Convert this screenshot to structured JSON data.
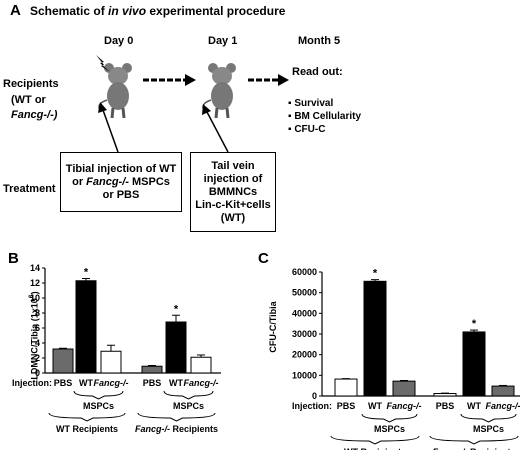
{
  "panelA": {
    "letter": "A",
    "title_prefix": "Schematic of ",
    "title_italic": "in vivo",
    "title_suffix": " experimental procedure",
    "day0": "Day 0",
    "day1": "Day 1",
    "month5": "Month 5",
    "recipients_line1": "Recipients",
    "recipients_line2": "(WT or",
    "recipients_line3": "Fancg-/-)",
    "readout_title": "Read out:",
    "readout_items": [
      "Survival",
      "BM Cellularity",
      "CFU-C"
    ],
    "treatment_label": "Treatment",
    "box1_line1": "Tibial injection of WT",
    "box1_line2_italic": "Fancg-/-",
    "box1_line2_prefix": "or ",
    "box1_line2_suffix": " MSPCs",
    "box1_line3": "or PBS",
    "box2_lines": [
      "Tail vein",
      "injection of",
      "BMMNCs",
      "Lin-c-Kit+cells",
      "(WT)"
    ]
  },
  "panelB": {
    "letter": "B",
    "ylabel": "LDMNC/Tibia (1x10",
    "ylabel_sup": "6",
    "ylabel_end": ")",
    "injection_label": "Injection:",
    "mspcs": "MSPCs",
    "wt_recipients": "WT Recipients",
    "fancg_recipients_italic": "Fancg-/-",
    "fancg_recipients_suffix": " Recipients",
    "star": "*"
  },
  "panelC": {
    "letter": "C",
    "ylabel": "CFU-C/Tibia",
    "injection_label": "Injection:",
    "mspcs": "MSPCs",
    "wt_recipients": "WT Recipients",
    "fancg_recipients_italic": "Fancg-/-",
    "fancg_recipients_suffix": " Recipients",
    "star": "*"
  },
  "chart_data": [
    {
      "type": "bar",
      "panel": "B",
      "ylabel": "LDMNC/Tibia (1x10^6)",
      "ylim": [
        0,
        14
      ],
      "yticks": [
        0,
        2,
        4,
        6,
        8,
        10,
        12,
        14
      ],
      "categories": [
        "PBS",
        "WT",
        "Fancg-/-",
        "PBS",
        "WT",
        "Fancg-/-"
      ],
      "groups": [
        "WT Recipients",
        "Fancg-/- Recipients"
      ],
      "values": [
        3.2,
        12.3,
        2.9,
        0.9,
        6.8,
        2.1
      ],
      "errors": [
        0.1,
        0.3,
        0.8,
        0.1,
        0.9,
        0.3
      ],
      "significant": [
        false,
        true,
        false,
        false,
        true,
        false
      ],
      "colors": [
        "#6b6b6b",
        "#000000",
        "#ffffff",
        "#6b6b6b",
        "#000000",
        "#ffffff"
      ]
    },
    {
      "type": "bar",
      "panel": "C",
      "ylabel": "CFU-C/Tibia",
      "ylim": [
        0,
        60000
      ],
      "yticks": [
        0,
        10000,
        20000,
        30000,
        40000,
        50000,
        60000
      ],
      "categories": [
        "PBS",
        "WT",
        "Fancg-/-",
        "PBS",
        "WT",
        "Fancg-/-"
      ],
      "groups": [
        "WT Recipients",
        "Fancg-/- Recipients"
      ],
      "values": [
        8200,
        55500,
        7200,
        1200,
        31000,
        4800
      ],
      "errors": [
        200,
        800,
        300,
        200,
        900,
        300
      ],
      "significant": [
        false,
        true,
        false,
        false,
        true,
        false
      ],
      "colors": [
        "#ffffff",
        "#000000",
        "#6b6b6b",
        "#ffffff",
        "#000000",
        "#6b6b6b"
      ]
    }
  ]
}
